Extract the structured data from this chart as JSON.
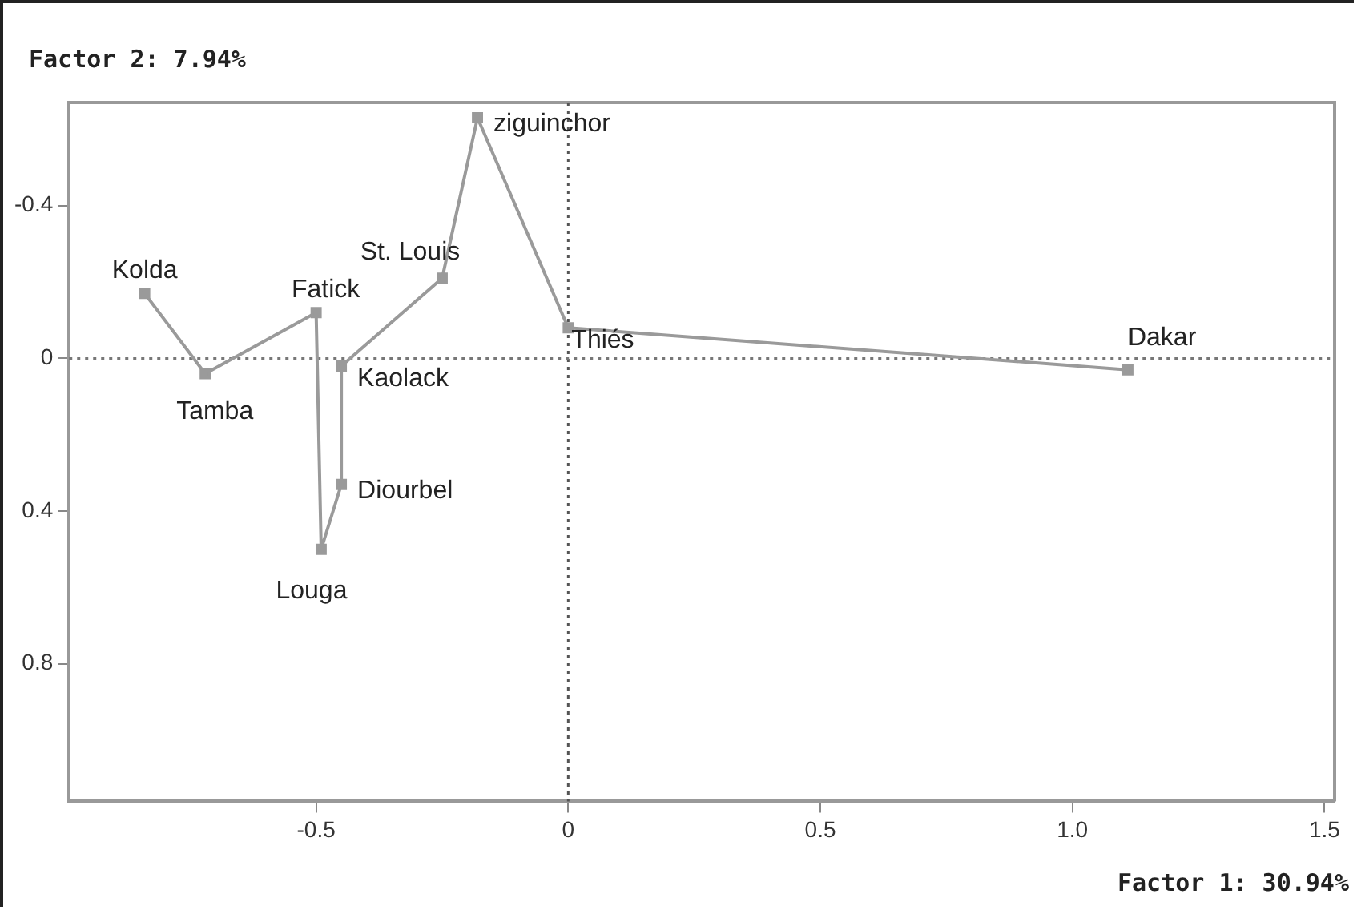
{
  "chart_data": {
    "type": "line",
    "xlabel": "Factor 1: 30.94%",
    "ylabel": "Factor 2: 7.94%",
    "x": [
      -0.84,
      -0.72,
      -0.5,
      -0.49,
      -0.45,
      -0.45,
      -0.25,
      -0.18,
      0.0,
      1.11
    ],
    "series": [
      {
        "color": "#9a9a9a",
        "values": [
          -0.17,
          0.04,
          -0.12,
          0.5,
          0.33,
          0.02,
          -0.21,
          -0.63,
          -0.08,
          0.03
        ]
      }
    ],
    "xlim": [
      -0.99,
      1.52
    ],
    "ylim": [
      1.16,
      -0.67
    ],
    "xticks": [
      -0.5,
      0,
      0.5,
      {
        "value": 1,
        "label": "1.0"
      },
      1.5
    ],
    "yticks": [
      -0.4,
      0,
      0.4,
      0.8
    ],
    "ref_lines": [
      {
        "axis": "x",
        "value": 0,
        "color": "#555555",
        "line_style": "dotted"
      },
      {
        "axis": "y",
        "value": 0,
        "color": "#777777",
        "line_style": "dotted"
      }
    ],
    "annotations": [
      {
        "text": "Kolda",
        "x": -0.84,
        "y": -0.17
      },
      {
        "text": "Tamba",
        "x": -0.72,
        "y": 0.04
      },
      {
        "text": "Fatick",
        "x": -0.5,
        "y": -0.12
      },
      {
        "text": "Louga",
        "x": -0.49,
        "y": 0.5
      },
      {
        "text": "Diourbel",
        "x": -0.45,
        "y": 0.33
      },
      {
        "text": "Kaolack",
        "x": -0.45,
        "y": 0.02
      },
      {
        "text": "St. Louis",
        "x": -0.25,
        "y": -0.21
      },
      {
        "text": "ziguinchor",
        "x": -0.18,
        "y": -0.63
      },
      {
        "text": "Thiés",
        "x": 0.0,
        "y": -0.08
      },
      {
        "text": "Dakar",
        "x": 1.11,
        "y": 0.03
      }
    ],
    "grid": false,
    "legend": false,
    "marker": "square",
    "line_style": "solid"
  }
}
